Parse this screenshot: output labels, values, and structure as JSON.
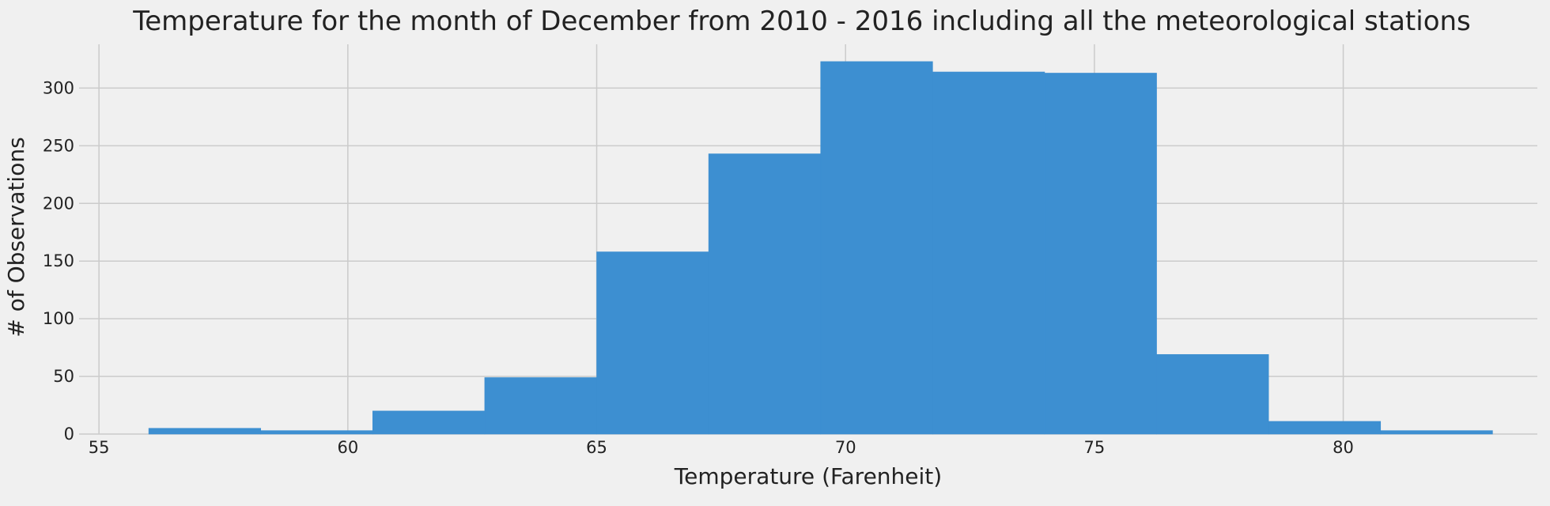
{
  "chart_data": {
    "type": "bar",
    "subtype": "histogram",
    "title": "Temperature for the month of December from 2010 - 2016 including all the meteorological stations",
    "xlabel": "Temperature (Farenheit)",
    "ylabel": "# of Observations",
    "xlim": [
      54.6,
      83.9
    ],
    "ylim": [
      0,
      338
    ],
    "xticks": [
      55,
      60,
      65,
      70,
      75,
      80
    ],
    "yticks": [
      0,
      50,
      100,
      150,
      200,
      250,
      300
    ],
    "grid": true,
    "bar_color": "#3d8fd1",
    "bins": [
      {
        "start": 56.0,
        "end": 58.25,
        "count": 5
      },
      {
        "start": 58.25,
        "end": 60.5,
        "count": 3
      },
      {
        "start": 60.5,
        "end": 62.75,
        "count": 20
      },
      {
        "start": 62.75,
        "end": 65.0,
        "count": 49
      },
      {
        "start": 65.0,
        "end": 67.25,
        "count": 158
      },
      {
        "start": 67.25,
        "end": 69.5,
        "count": 243
      },
      {
        "start": 69.5,
        "end": 71.75,
        "count": 323
      },
      {
        "start": 71.75,
        "end": 74.0,
        "count": 314
      },
      {
        "start": 74.0,
        "end": 76.25,
        "count": 313
      },
      {
        "start": 76.25,
        "end": 78.5,
        "count": 69
      },
      {
        "start": 78.5,
        "end": 80.75,
        "count": 11
      },
      {
        "start": 80.75,
        "end": 83.0,
        "count": 3
      }
    ]
  }
}
